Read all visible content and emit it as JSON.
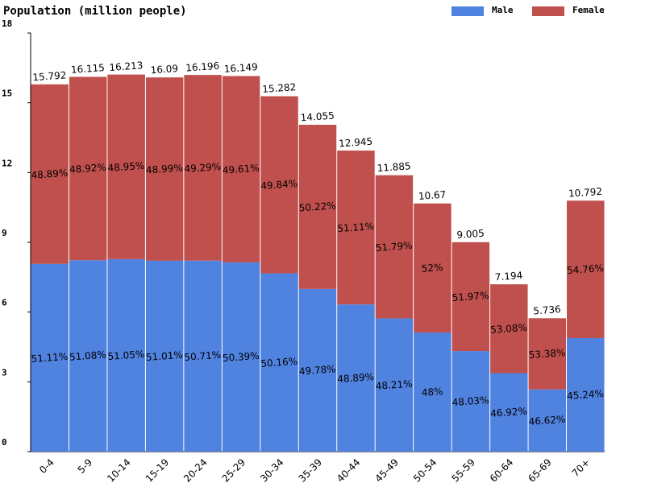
{
  "chart_data": {
    "type": "stacked_percent_bar",
    "title": "Population (million people)",
    "categories": [
      "0-4",
      "5-9",
      "10-14",
      "15-19",
      "20-24",
      "25-29",
      "30-34",
      "35-39",
      "40-44",
      "45-49",
      "50-54",
      "55-59",
      "60-64",
      "65-69",
      "70+"
    ],
    "totals": [
      15.792,
      16.115,
      16.213,
      16.09,
      16.196,
      16.149,
      15.282,
      14.055,
      12.945,
      11.885,
      10.67,
      9.005,
      7.194,
      5.736,
      10.792
    ],
    "series": [
      {
        "name": "Male",
        "color": "#5082e0",
        "values": [
          51.11,
          51.08,
          51.05,
          51.01,
          50.71,
          50.39,
          50.16,
          49.78,
          48.89,
          48.21,
          48,
          48.03,
          46.92,
          46.62,
          45.24
        ],
        "value_labels": [
          "51.11%",
          "51.08%",
          "51.05%",
          "51.01%",
          "50.71%",
          "50.39%",
          "50.16%",
          "49.78%",
          "48.89%",
          "48.21%",
          "48%",
          "48.03%",
          "46.92%",
          "46.62%",
          "45.24%"
        ]
      },
      {
        "name": "Female",
        "color": "#c0504d",
        "values": [
          48.89,
          48.92,
          48.95,
          48.99,
          49.29,
          49.61,
          49.84,
          50.22,
          51.11,
          51.79,
          52,
          51.97,
          53.08,
          53.38,
          54.76
        ],
        "value_labels": [
          "48.89%",
          "48.92%",
          "48.95%",
          "48.99%",
          "49.29%",
          "49.61%",
          "49.84%",
          "50.22%",
          "51.11%",
          "51.79%",
          "52%",
          "51.97%",
          "53.08%",
          "53.38%",
          "54.76%"
        ]
      }
    ],
    "ylim": [
      0,
      18
    ],
    "yticks": [
      0,
      3,
      6,
      9,
      12,
      15,
      18
    ]
  }
}
